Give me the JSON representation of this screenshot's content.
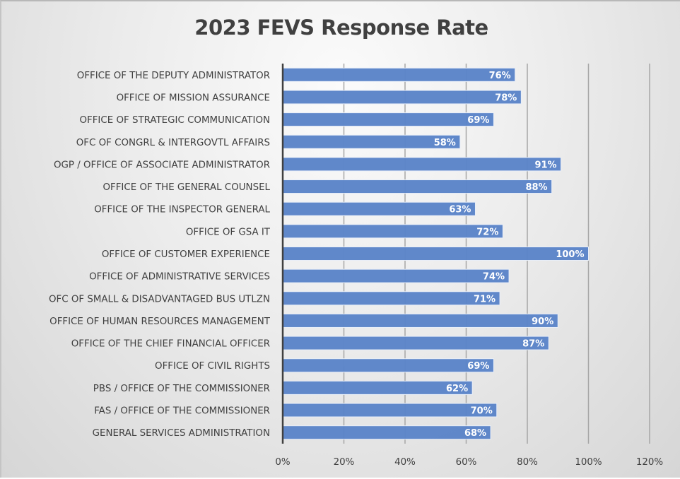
{
  "chart_data": {
    "type": "bar",
    "orientation": "horizontal",
    "title": "2023 FEVS Response Rate",
    "xlabel": "",
    "ylabel": "",
    "xlim": [
      0,
      120
    ],
    "x_ticks": [
      0,
      20,
      40,
      60,
      80,
      100,
      120
    ],
    "x_tick_labels": [
      "0%",
      "20%",
      "40%",
      "60%",
      "80%",
      "100%",
      "120%"
    ],
    "grid": true,
    "legend": "none",
    "bar_color": "#5b84c8",
    "categories": [
      "OFFICE OF THE DEPUTY ADMINISTRATOR",
      "OFFICE OF MISSION ASSURANCE",
      "OFFICE OF STRATEGIC COMMUNICATION",
      "OFC OF CONGRL & INTERGOVTL AFFAIRS",
      "OGP / OFFICE OF ASSOCIATE ADMINISTRATOR",
      "OFFICE OF THE GENERAL COUNSEL",
      "OFFICE OF THE INSPECTOR GENERAL",
      "OFFICE OF GSA IT",
      "OFFICE OF CUSTOMER EXPERIENCE",
      "OFFICE OF ADMINISTRATIVE SERVICES",
      "OFC OF SMALL & DISADVANTAGED BUS UTLZN",
      "OFFICE OF HUMAN RESOURCES MANAGEMENT",
      "OFFICE OF THE CHIEF FINANCIAL OFFICER",
      "OFFICE OF CIVIL RIGHTS",
      "PBS / OFFICE OF THE COMMISSIONER",
      "FAS / OFFICE OF THE COMMISSIONER",
      "GENERAL SERVICES ADMINISTRATION"
    ],
    "values": [
      76,
      78,
      69,
      58,
      91,
      88,
      63,
      72,
      100,
      74,
      71,
      90,
      87,
      69,
      62,
      70,
      68
    ],
    "value_labels": [
      "76%",
      "78%",
      "69%",
      "58%",
      "91%",
      "88%",
      "63%",
      "72%",
      "100%",
      "74%",
      "71%",
      "90%",
      "87%",
      "69%",
      "62%",
      "70%",
      "68%"
    ]
  }
}
